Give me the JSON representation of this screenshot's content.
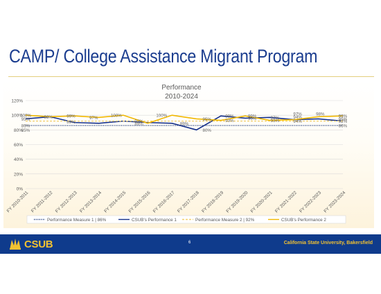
{
  "slide": {
    "title": "CAMP/ College Assistance Migrant Program",
    "page_number": "6",
    "logo_text": "CSUB",
    "university": "California State University, Bakersfield",
    "colors": {
      "brand_blue": "#0f3b8c",
      "brand_gold": "#f2c231",
      "title_blue": "#1b3d8f"
    }
  },
  "chart_data": {
    "type": "line",
    "title": "Performance",
    "subtitle": "2010-2024",
    "categories": [
      "FY 2010-2011",
      "FY 2011-2012",
      "FY 2012-2013",
      "FY 2013-2014",
      "FY 2014-2015",
      "FY 2015-2016",
      "FY 2016-2017",
      "FY 2017-2018",
      "FY 2018-2019",
      "FY 2019-2020",
      "FY 2020-2021",
      "FY 2021-2022",
      "FY 2022-2023",
      "FY 2023-2024"
    ],
    "ylim": [
      0,
      120
    ],
    "yticks": [
      "0%",
      "20%",
      "40%",
      "60%",
      "80%",
      "100%",
      "120%"
    ],
    "ytick_values": [
      0,
      20,
      40,
      60,
      80,
      100,
      120
    ],
    "grid": true,
    "legend_position": "bottom",
    "series": [
      {
        "name": "Performance Measure 1 | 86%",
        "color": "#1f3a7a",
        "style": "dotted",
        "values": [
          86,
          86,
          86,
          86,
          86,
          86,
          86,
          86,
          86,
          86,
          86,
          86,
          86,
          86
        ]
      },
      {
        "name": "CSUB's Performance 1",
        "color": "#15308a",
        "style": "solid",
        "values": [
          95,
          98,
          90,
          89,
          92,
          90,
          89,
          80,
          99,
          96,
          97,
          94,
          95,
          92
        ]
      },
      {
        "name": "Performance Measure 2 | 92%",
        "color": "#f3cf6a",
        "style": "dashed",
        "values": [
          92,
          92,
          92,
          92,
          92,
          92,
          92,
          92,
          92,
          92,
          92,
          92,
          92,
          92
        ]
      },
      {
        "name": "CSUB's Performance 2",
        "color": "#f2b800",
        "style": "solid",
        "values": [
          100,
          98,
          99,
          97,
          100,
          89,
          100,
          95,
          93,
          99,
          93,
          94,
          98,
          99
        ]
      }
    ],
    "data_labels": [
      {
        "text": "86%",
        "x": 0,
        "y": 86
      },
      {
        "text": "95%",
        "x": 0,
        "y": 95
      },
      {
        "text": "85%",
        "x": 0,
        "y": 80
      },
      {
        "text": "100%",
        "x": 0,
        "y": 100
      },
      {
        "text": "98%",
        "x": 1,
        "y": 98
      },
      {
        "text": "99%",
        "x": 2,
        "y": 99
      },
      {
        "text": "89%",
        "x": 2,
        "y": 91
      },
      {
        "text": "97%",
        "x": 3,
        "y": 97
      },
      {
        "text": "100%",
        "x": 4,
        "y": 100
      },
      {
        "text": "92%",
        "x": 5,
        "y": 92
      },
      {
        "text": "89%",
        "x": 5,
        "y": 89
      },
      {
        "text": "100%",
        "x": 6,
        "y": 100
      },
      {
        "text": "89%",
        "x": 7,
        "y": 89
      },
      {
        "text": "95%",
        "x": 8,
        "y": 95
      },
      {
        "text": "80%",
        "x": 8,
        "y": 80
      },
      {
        "text": "99%",
        "x": 9,
        "y": 99
      },
      {
        "text": "93%",
        "x": 9,
        "y": 93
      },
      {
        "text": "99%",
        "x": 10,
        "y": 99
      },
      {
        "text": "96%",
        "x": 10,
        "y": 96
      },
      {
        "text": "97%",
        "x": 11,
        "y": 97
      },
      {
        "text": "93%",
        "x": 11,
        "y": 93
      },
      {
        "text": "94%",
        "x": 12,
        "y": 98
      },
      {
        "text": "94%",
        "x": 12,
        "y": 92
      },
      {
        "text": "97%",
        "x": 12,
        "y": 102
      },
      {
        "text": "98%",
        "x": 13,
        "y": 102
      },
      {
        "text": "99%",
        "x": 14,
        "y": 99
      },
      {
        "text": "95%",
        "x": 14,
        "y": 95
      },
      {
        "text": "92%",
        "x": 14,
        "y": 92
      },
      {
        "text": "86%",
        "x": 14,
        "y": 86
      }
    ]
  }
}
